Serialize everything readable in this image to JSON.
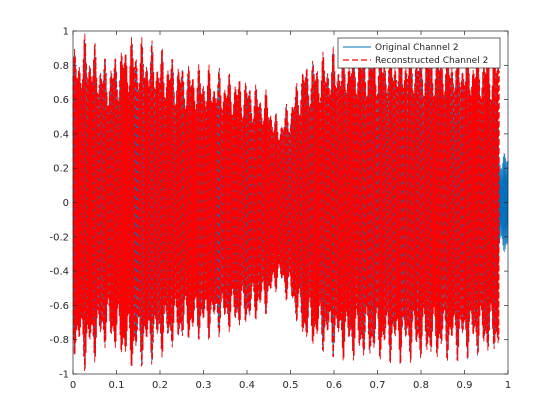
{
  "chart_data": {
    "type": "line",
    "title": "",
    "xlabel": "",
    "ylabel": "",
    "xlim": [
      0,
      1
    ],
    "ylim": [
      -1,
      1
    ],
    "xticks": [
      0,
      0.1,
      0.2,
      0.3,
      0.4,
      0.5,
      0.6,
      0.7,
      0.8,
      0.9,
      1
    ],
    "xtick_labels": [
      "0",
      "0.1",
      "0.2",
      "0.3",
      "0.4",
      "0.5",
      "0.6",
      "0.7",
      "0.8",
      "0.9",
      "1"
    ],
    "yticks": [
      -1,
      -0.8,
      -0.6,
      -0.4,
      -0.2,
      0,
      0.2,
      0.4,
      0.6,
      0.8,
      1
    ],
    "ytick_labels": [
      "-1",
      "-0.8",
      "-0.6",
      "-0.4",
      "-0.2",
      "0",
      "0.2",
      "0.4",
      "0.6",
      "0.8",
      "1"
    ],
    "grid": false,
    "legend_position": "top-right",
    "series": [
      {
        "name": "Original Channel 2",
        "color": "#0072BD",
        "style": "solid",
        "x_range": [
          0,
          1
        ],
        "dense_oscillation": true,
        "envelope_x": [
          0.0,
          0.03,
          0.08,
          0.13,
          0.18,
          0.25,
          0.32,
          0.4,
          0.45,
          0.47,
          0.5,
          0.53,
          0.58,
          0.65,
          0.75,
          0.85,
          0.92,
          0.975,
          0.98,
          1.0
        ],
        "envelope_amp": [
          0.9,
          1.0,
          0.85,
          1.0,
          0.95,
          0.85,
          0.8,
          0.75,
          0.65,
          0.5,
          0.62,
          0.85,
          0.9,
          0.95,
          0.95,
          0.95,
          0.92,
          0.92,
          0.3,
          0.3
        ],
        "annotation": "Tonal oscillations continue past x=0.98 with the low-amplitude band (±0.3) out to x=1."
      },
      {
        "name": "Reconstructed Channel 2",
        "color": "#FF0000",
        "style": "dashed",
        "x_range": [
          0,
          0.98
        ],
        "dense_oscillation": true,
        "envelope_x": [
          0.0,
          0.03,
          0.08,
          0.13,
          0.18,
          0.25,
          0.32,
          0.4,
          0.45,
          0.47,
          0.5,
          0.53,
          0.58,
          0.65,
          0.75,
          0.85,
          0.92,
          0.98
        ],
        "envelope_amp": [
          0.9,
          1.0,
          0.85,
          1.0,
          0.95,
          0.85,
          0.8,
          0.75,
          0.65,
          0.5,
          0.62,
          0.85,
          0.9,
          0.95,
          0.95,
          0.95,
          0.92,
          0.92
        ]
      }
    ]
  }
}
